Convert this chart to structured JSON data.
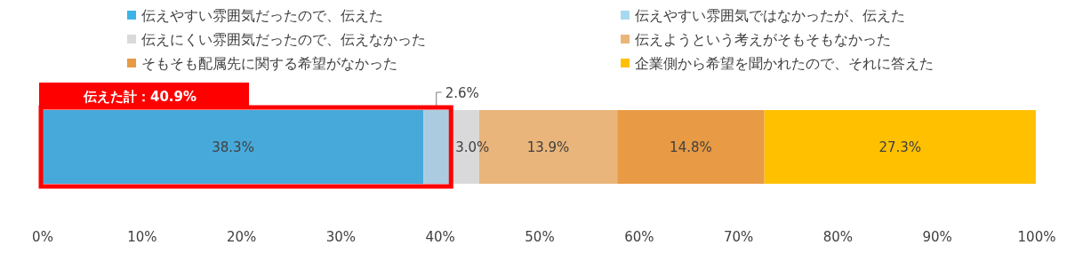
{
  "chart_data": {
    "type": "bar",
    "orientation": "horizontal",
    "stacked": true,
    "categories": [
      null
    ],
    "series": [
      {
        "name": "伝えやすい雰囲気だったので、伝えた",
        "color": "#3cb4e8",
        "values": [
          38.3
        ],
        "value_labels": [
          "38.3%"
        ]
      },
      {
        "name": "伝えやすい雰囲気ではなかったが、伝えた",
        "color": "#a6d9ef",
        "values": [
          2.6
        ],
        "value_labels": [
          "2.6%"
        ]
      },
      {
        "name": "伝えにくい雰囲気だったので、伝えなかった",
        "color": "#d9d9d9",
        "values": [
          3.0
        ],
        "value_labels": [
          "3.0%"
        ]
      },
      {
        "name": "伝えようという考えがそもそもなかった",
        "color": "#e9b57a",
        "values": [
          13.9
        ],
        "value_labels": [
          "13.9%"
        ]
      },
      {
        "name": "そもそも配属先に関する希望がなかった",
        "color": "#e89a44",
        "values": [
          14.8
        ],
        "value_labels": [
          "14.8%"
        ]
      },
      {
        "name": "企業側から希望を聞かれたので、それに答えた",
        "color": "#ffc000",
        "values": [
          27.3
        ],
        "value_labels": [
          "27.3%"
        ]
      }
    ],
    "xlim": [
      0,
      100
    ],
    "xticks": [
      {
        "value": 0,
        "label": "0%"
      },
      {
        "value": 10,
        "label": "10%"
      },
      {
        "value": 20,
        "label": "20%"
      },
      {
        "value": 30,
        "label": "30%"
      },
      {
        "value": 40,
        "label": "40%"
      },
      {
        "value": 50,
        "label": "50%"
      },
      {
        "value": 60,
        "label": "60%"
      },
      {
        "value": 70,
        "label": "70%"
      },
      {
        "value": 80,
        "label": "80%"
      },
      {
        "value": 90,
        "label": "90%"
      },
      {
        "value": 100,
        "label": "100%"
      }
    ],
    "bands": [
      {
        "axis": "x",
        "from": 0,
        "to": 40.9,
        "label": "伝えた計：40.9%",
        "color": "#ff0000"
      }
    ],
    "legend": "top",
    "grid": false,
    "tick_labels": "x"
  }
}
